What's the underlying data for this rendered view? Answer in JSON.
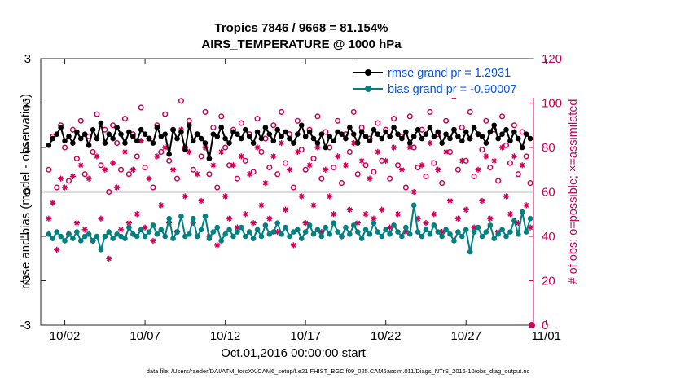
{
  "title_line1": "Tropics 7846 / 9668 = 81.154%",
  "title_line2": "AIRS_TEMPERATURE @ 1000 hPa",
  "xlabel": "Oct.01,2016 00:00:00 start",
  "footnote": "data file: /Users/raeder/DAI/ATM_forcXX/CAM6_setup/f.e21.FHIST_BGC.f09_025.CAM6assim.011/Diags_NTrS_2016-10/obs_diag_output.nc",
  "ylabel_left": "rmse and bias (model - observation)",
  "ylabel_right": "# of obs: o=possible; ×=assimilated",
  "colors": {
    "rmse": "#000000",
    "bias": "#008080",
    "obs": "#cc0055",
    "legend_text": "#0055ee",
    "zero_line": "#bbbbbb"
  },
  "chart_data": {
    "type": "line",
    "title": "Tropics 7846 / 9668 = 81.154% — AIRS_TEMPERATURE @ 1000 hPa",
    "xlabel": "Oct.01,2016 00:00:00 start",
    "ylabel": "rmse and bias (model - observation)",
    "y2label": "# of obs: o=possible; ×=assimilated",
    "xlim": [
      0.5,
      31.2
    ],
    "ylim": [
      -3,
      3
    ],
    "y2lim": [
      0,
      120
    ],
    "x_tick_values": [
      2,
      7,
      12,
      17,
      22,
      27,
      32
    ],
    "x_tick_labels": [
      "10/02",
      "10/07",
      "10/12",
      "10/17",
      "10/22",
      "10/27",
      "11/01"
    ],
    "y_ticks": [
      -3,
      -2,
      -1,
      0,
      1,
      2,
      3
    ],
    "y2_ticks": [
      0,
      20,
      40,
      60,
      80,
      100,
      120
    ],
    "legend": {
      "placement": "top-right",
      "entries": [
        "rmse grand pr = 1.2931",
        "bias grand pr = -0.90007"
      ]
    },
    "x": [
      1.0,
      1.25,
      1.5,
      1.75,
      2.0,
      2.25,
      2.5,
      2.75,
      3.0,
      3.25,
      3.5,
      3.75,
      4.0,
      4.25,
      4.5,
      4.75,
      5.0,
      5.25,
      5.5,
      5.75,
      6.0,
      6.25,
      6.5,
      6.75,
      7.0,
      7.25,
      7.5,
      7.75,
      8.0,
      8.25,
      8.5,
      8.75,
      9.0,
      9.25,
      9.5,
      9.75,
      10.0,
      10.25,
      10.5,
      10.75,
      11.0,
      11.25,
      11.5,
      11.75,
      12.0,
      12.25,
      12.5,
      12.75,
      13.0,
      13.25,
      13.5,
      13.75,
      14.0,
      14.25,
      14.5,
      14.75,
      15.0,
      15.25,
      15.5,
      15.75,
      16.0,
      16.25,
      16.5,
      16.75,
      17.0,
      17.25,
      17.5,
      17.75,
      18.0,
      18.25,
      18.5,
      18.75,
      19.0,
      19.25,
      19.5,
      19.75,
      20.0,
      20.25,
      20.5,
      20.75,
      21.0,
      21.25,
      21.5,
      21.75,
      22.0,
      22.25,
      22.5,
      22.75,
      23.0,
      23.25,
      23.5,
      23.75,
      24.0,
      24.25,
      24.5,
      24.75,
      25.0,
      25.25,
      25.5,
      25.75,
      26.0,
      26.25,
      26.5,
      26.75,
      27.0,
      27.25,
      27.5,
      27.75,
      28.0,
      28.25,
      28.5,
      28.75,
      29.0,
      29.25,
      29.5,
      29.75,
      30.0,
      30.25,
      30.5,
      30.75,
      31.0
    ],
    "series": [
      {
        "name": "rmse grand pr = 1.2931",
        "axis": "left",
        "marker": "filled-circle",
        "values": [
          1.05,
          1.2,
          1.3,
          1.45,
          1.15,
          1.25,
          1.1,
          1.35,
          1.2,
          1.3,
          1.05,
          1.4,
          1.2,
          1.55,
          1.1,
          1.3,
          1.2,
          1.45,
          1.3,
          1.1,
          1.35,
          1.25,
          1.15,
          1.4,
          1.3,
          1.2,
          1.1,
          1.45,
          1.25,
          1.3,
          0.85,
          1.4,
          1.2,
          1.35,
          0.95,
          1.5,
          1.15,
          1.3,
          1.2,
          1.1,
          0.75,
          1.3,
          1.25,
          1.45,
          1.2,
          1.1,
          1.35,
          1.3,
          1.2,
          1.4,
          1.25,
          1.1,
          1.35,
          1.2,
          1.45,
          1.3,
          1.15,
          1.4,
          1.25,
          1.35,
          1.2,
          1.1,
          1.3,
          1.5,
          1.25,
          1.35,
          1.2,
          1.1,
          1.3,
          1.0,
          1.25,
          1.15,
          1.35,
          1.3,
          1.2,
          1.45,
          1.3,
          1.1,
          1.35,
          1.25,
          1.15,
          1.4,
          1.3,
          1.2,
          1.35,
          1.25,
          1.45,
          1.3,
          1.2,
          1.35,
          1.1,
          1.25,
          1.4,
          1.2,
          1.3,
          1.45,
          1.25,
          1.35,
          1.1,
          1.3,
          1.2,
          1.4,
          1.25,
          1.15,
          1.35,
          1.2,
          1.45,
          1.3,
          1.25,
          1.1,
          1.35,
          1.5,
          1.2,
          1.3,
          1.4,
          1.15,
          1.35,
          1.2,
          1.0,
          1.3,
          1.2
        ]
      },
      {
        "name": "bias grand pr = -0.90007",
        "axis": "left",
        "marker": "filled-circle",
        "values": [
          -0.95,
          -1.05,
          -0.9,
          -1.0,
          -1.1,
          -0.95,
          -1.05,
          -0.9,
          -1.1,
          -1.0,
          -0.95,
          -1.1,
          -1.0,
          -1.3,
          -1.0,
          -0.9,
          -1.05,
          -0.95,
          -1.0,
          -1.05,
          -0.8,
          -0.95,
          -1.0,
          -0.85,
          -1.0,
          -0.9,
          -0.75,
          -0.95,
          -0.85,
          -1.0,
          -0.6,
          -1.05,
          -0.9,
          -0.55,
          -1.0,
          -0.95,
          -0.6,
          -1.0,
          -0.85,
          -0.55,
          -1.05,
          -0.9,
          -0.8,
          -1.1,
          -0.95,
          -0.85,
          -1.0,
          -0.9,
          -0.8,
          -1.0,
          -0.9,
          -1.05,
          -0.85,
          -1.0,
          -0.75,
          -0.95,
          -0.9,
          -0.7,
          -0.95,
          -0.8,
          -1.0,
          -0.9,
          -0.85,
          -1.05,
          -0.9,
          -0.75,
          -0.95,
          -0.85,
          -1.0,
          -0.8,
          -0.95,
          -0.7,
          -0.9,
          -1.0,
          -0.8,
          -0.95,
          -0.75,
          -0.9,
          -1.05,
          -0.85,
          -0.95,
          -0.7,
          -0.9,
          -1.0,
          -0.85,
          -0.95,
          -0.75,
          -0.9,
          -1.0,
          -0.8,
          -0.95,
          -0.3,
          -0.9,
          -1.0,
          -0.85,
          -0.95,
          -0.75,
          -0.9,
          -1.0,
          -0.85,
          -0.95,
          -1.1,
          -0.9,
          -1.0,
          -0.85,
          -1.35,
          -0.9,
          -0.8,
          -1.0,
          -0.9,
          -0.75,
          -1.05,
          -0.95,
          -0.85,
          -1.0,
          -0.9,
          -0.65,
          -0.95,
          -0.45,
          -0.9,
          -0.6
        ]
      },
      {
        "name": "# obs possible",
        "axis": "right",
        "marker": "open-circle",
        "values": [
          70,
          85,
          62,
          90,
          80,
          65,
          88,
          75,
          92,
          68,
          85,
          78,
          95,
          72,
          88,
          60,
          90,
          82,
          70,
          93,
          68,
          86,
          76,
          98,
          71,
          84,
          62,
          90,
          78,
          95,
          74,
          88,
          66,
          101,
          80,
          92,
          70,
          86,
          76,
          96,
          68,
          89,
          62,
          94,
          80,
          72,
          88,
          66,
          91,
          74,
          86,
          69,
          93,
          78,
          84,
          71,
          90,
          68,
          96,
          73,
          86,
          62,
          92,
          79,
          70,
          88,
          75,
          94,
          66,
          87,
          80,
          71,
          92,
          64,
          86,
          78,
          96,
          68,
          89,
          72,
          84,
          69,
          91,
          74,
          88,
          66,
          93,
          72,
          85,
          62,
          94,
          80,
          71,
          88,
          67,
          96,
          73,
          86,
          64,
          92,
          78,
          103,
          70,
          89,
          74,
          96,
          67,
          86,
          79,
          92,
          71,
          88,
          65,
          94,
          81,
          73,
          90,
          68,
          87,
          76,
          64
        ]
      },
      {
        "name": "# obs assimilated",
        "axis": "right",
        "marker": "asterisk",
        "values": [
          48,
          55,
          34,
          66,
          62,
          41,
          67,
          46,
          72,
          43,
          66,
          38,
          76,
          48,
          70,
          30,
          73,
          62,
          43,
          78,
          46,
          70,
          50,
          83,
          44,
          66,
          38,
          76,
          54,
          80,
          46,
          70,
          42,
          88,
          58,
          78,
          46,
          68,
          56,
          80,
          40,
          72,
          36,
          78,
          58,
          48,
          72,
          44,
          76,
          50,
          68,
          46,
          80,
          54,
          64,
          48,
          76,
          42,
          82,
          52,
          70,
          36,
          78,
          58,
          46,
          72,
          54,
          80,
          42,
          70,
          58,
          50,
          76,
          40,
          72,
          52,
          82,
          46,
          74,
          50,
          66,
          48,
          78,
          52,
          74,
          44,
          80,
          50,
          70,
          42,
          80,
          60,
          48,
          72,
          46,
          82,
          50,
          70,
          42,
          78,
          56,
          88,
          48,
          74,
          52,
          84,
          44,
          70,
          56,
          76,
          48,
          74,
          42,
          80,
          58,
          50,
          76,
          46,
          72,
          54,
          44
        ]
      }
    ]
  }
}
